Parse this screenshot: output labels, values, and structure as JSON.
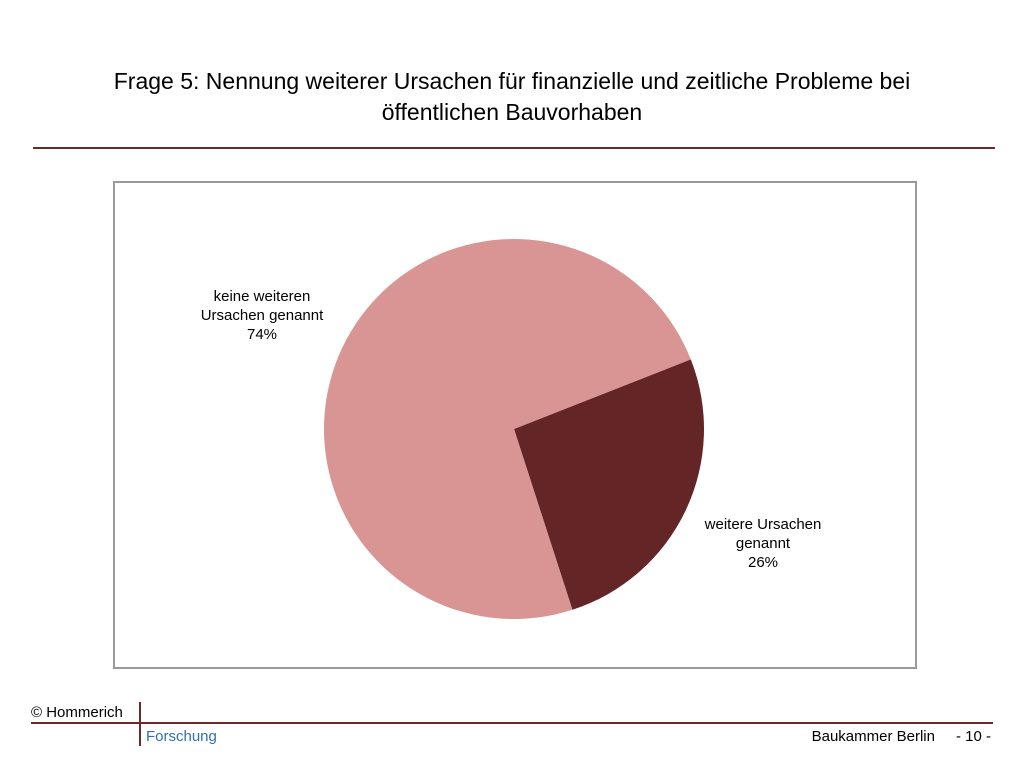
{
  "slide": {
    "title_line1": "Frage 5: Nennung weiterer Ursachen für finanzielle und zeitliche Probleme bei",
    "title_line2": "öffentlichen Bauvorhaben"
  },
  "chart_data": {
    "type": "pie",
    "title": "",
    "slices": [
      {
        "label_lines": [
          "keine weiteren",
          "Ursachen genannt",
          "74%"
        ],
        "value": 74,
        "color": "#d89594"
      },
      {
        "label_lines": [
          "weitere Ursachen",
          "genannt",
          "26%"
        ],
        "value": 26,
        "color": "#642526"
      }
    ]
  },
  "footer": {
    "copyright": "© Hommerich",
    "department": "Forschung",
    "organization": "Baukammer Berlin",
    "page": "- 10 -"
  },
  "colors": {
    "accent_rule": "#6b2a2a",
    "department_text": "#2e6fb5",
    "frame_border": "#9a9a9a"
  }
}
